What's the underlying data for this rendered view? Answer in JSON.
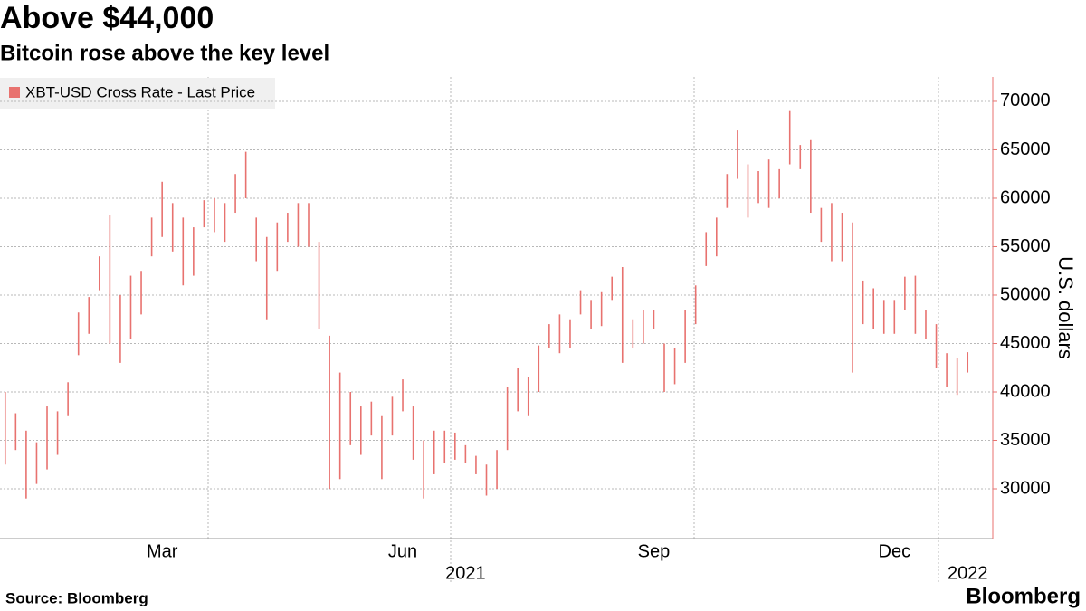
{
  "chart_data": {
    "type": "range",
    "title": "Above $44,000",
    "subtitle": "Bitcoin rose above the key level",
    "y_label": "U.S. dollars",
    "source": "Source: Bloomberg",
    "logo": "Bloomberg",
    "legend": "top-left",
    "grid": true,
    "ylim": [
      24860,
      72520
    ],
    "yticks": [
      30000,
      35000,
      40000,
      45000,
      50000,
      55000,
      60000,
      65000,
      70000
    ],
    "categories": [
      null,
      null,
      null,
      null,
      null,
      null,
      null,
      null,
      null,
      null,
      null,
      null,
      null,
      null,
      null,
      "Mar",
      null,
      null,
      null,
      null,
      null,
      null,
      null,
      null,
      null,
      null,
      null,
      null,
      null,
      null,
      null,
      null,
      null,
      null,
      null,
      null,
      null,
      null,
      "Jun",
      null,
      null,
      null,
      null,
      null,
      null,
      null,
      null,
      null,
      null,
      null,
      null,
      null,
      null,
      null,
      null,
      null,
      null,
      null,
      null,
      null,
      null,
      null,
      "Sep",
      null,
      null,
      null,
      null,
      null,
      null,
      null,
      null,
      null,
      null,
      null,
      null,
      null,
      null,
      null,
      null,
      null,
      null,
      null,
      null,
      null,
      null,
      "Dec",
      null,
      null,
      null,
      null,
      null,
      null,
      null
    ],
    "year_categories": [
      null,
      null,
      null,
      null,
      null,
      null,
      null,
      null,
      null,
      null,
      null,
      null,
      null,
      null,
      null,
      null,
      null,
      null,
      null,
      null,
      null,
      null,
      null,
      null,
      null,
      null,
      null,
      null,
      null,
      null,
      null,
      null,
      null,
      null,
      null,
      null,
      null,
      null,
      null,
      null,
      null,
      null,
      null,
      null,
      "2021",
      null,
      null,
      null,
      null,
      null,
      null,
      null,
      null,
      null,
      null,
      null,
      null,
      null,
      null,
      null,
      null,
      null,
      null,
      null,
      null,
      null,
      null,
      null,
      null,
      null,
      null,
      null,
      null,
      null,
      null,
      null,
      null,
      null,
      null,
      null,
      null,
      null,
      null,
      null,
      null,
      null,
      null,
      null,
      null,
      null,
      null,
      null,
      "2022"
    ],
    "series": [
      {
        "name": "XBT-USD Cross Rate - Last Price",
        "color": "#e8726f",
        "low": [
          32500,
          34000,
          29000,
          30500,
          32000,
          33500,
          37500,
          43800,
          46000,
          50500,
          45000,
          43000,
          45500,
          48000,
          54000,
          56000,
          54500,
          51000,
          52000,
          57000,
          56500,
          55500,
          58500,
          60000,
          53500,
          47500,
          52500,
          55500,
          55000,
          55000,
          46500,
          30000,
          31000,
          34500,
          33500,
          35500,
          31000,
          35500,
          38000,
          33000,
          29000,
          31500,
          32700,
          33000,
          32700,
          31500,
          29300,
          30000,
          34000,
          38000,
          37500,
          40000,
          44500,
          44000,
          44500,
          48000,
          46500,
          46800,
          49500,
          43000,
          44500,
          45000,
          46500,
          40000,
          40800,
          43000,
          47000,
          53000,
          54000,
          59000,
          62000,
          58000,
          59500,
          59000,
          60000,
          63500,
          63000,
          58500,
          55500,
          53500,
          53500,
          42000,
          47000,
          46500,
          46000,
          46000,
          48500,
          46000,
          45500,
          42500,
          40500,
          39700,
          42000
        ],
        "high": [
          40000,
          37800,
          36000,
          34800,
          38500,
          38000,
          41000,
          48200,
          49800,
          54000,
          58300,
          50000,
          52000,
          52500,
          58000,
          61700,
          59500,
          58000,
          57000,
          59800,
          60000,
          59500,
          62500,
          64800,
          58000,
          56000,
          57500,
          58500,
          59500,
          59500,
          55500,
          45800,
          42000,
          40000,
          38500,
          39000,
          37500,
          39500,
          41300,
          38500,
          35000,
          36000,
          36000,
          35800,
          34500,
          33400,
          32500,
          34000,
          40500,
          42500,
          41500,
          44800,
          47000,
          48000,
          47500,
          50500,
          49500,
          50300,
          51900,
          52900,
          47500,
          48500,
          48500,
          45000,
          44500,
          48500,
          51000,
          56500,
          58000,
          62500,
          67000,
          63500,
          62800,
          64000,
          63000,
          69000,
          65500,
          66000,
          59000,
          59500,
          58500,
          57500,
          51500,
          50700,
          49500,
          49500,
          51900,
          52000,
          48500,
          47000,
          44000,
          43500,
          44100
        ]
      }
    ]
  }
}
